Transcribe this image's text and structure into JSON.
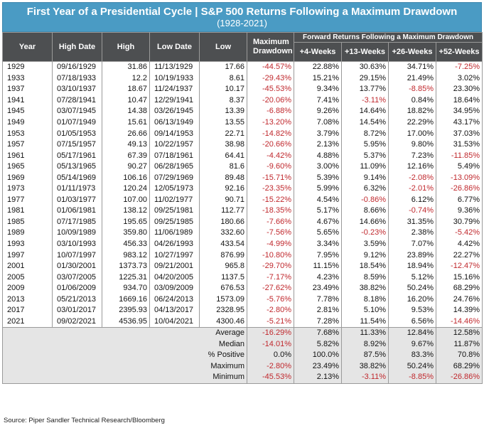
{
  "title": "First Year of a Presidential Cycle | S&P 500 Returns Following a Maximum Drawdown",
  "subtitle": "(1928-2021)",
  "super_header": "Forward Returns Following a Maximum Drawdown",
  "columns": [
    "Year",
    "High Date",
    "High",
    "Low Date",
    "Low",
    "Maximum Drawdown",
    "+4-Weeks",
    "+13-Weeks",
    "+26-Weeks",
    "+52-Weeks"
  ],
  "rows": [
    [
      "1929",
      "09/16/1929",
      "31.86",
      "11/13/1929",
      "17.66",
      "-44.57%",
      "22.88%",
      "30.63%",
      "34.71%",
      "-7.25%"
    ],
    [
      "1933",
      "07/18/1933",
      "12.2",
      "10/19/1933",
      "8.61",
      "-29.43%",
      "15.21%",
      "29.15%",
      "21.49%",
      "3.02%"
    ],
    [
      "1937",
      "03/10/1937",
      "18.67",
      "11/24/1937",
      "10.17",
      "-45.53%",
      "9.34%",
      "13.77%",
      "-8.85%",
      "23.30%"
    ],
    [
      "1941",
      "07/28/1941",
      "10.47",
      "12/29/1941",
      "8.37",
      "-20.06%",
      "7.41%",
      "-3.11%",
      "0.84%",
      "18.64%"
    ],
    [
      "1945",
      "03/07/1945",
      "14.38",
      "03/26/1945",
      "13.39",
      "-6.88%",
      "9.26%",
      "14.64%",
      "18.82%",
      "34.95%"
    ],
    [
      "1949",
      "01/07/1949",
      "15.61",
      "06/13/1949",
      "13.55",
      "-13.20%",
      "7.08%",
      "14.54%",
      "22.29%",
      "43.17%"
    ],
    [
      "1953",
      "01/05/1953",
      "26.66",
      "09/14/1953",
      "22.71",
      "-14.82%",
      "3.79%",
      "8.72%",
      "17.00%",
      "37.03%"
    ],
    [
      "1957",
      "07/15/1957",
      "49.13",
      "10/22/1957",
      "38.98",
      "-20.66%",
      "2.13%",
      "5.95%",
      "9.80%",
      "31.53%"
    ],
    [
      "1961",
      "05/17/1961",
      "67.39",
      "07/18/1961",
      "64.41",
      "-4.42%",
      "4.88%",
      "5.37%",
      "7.23%",
      "-11.85%"
    ],
    [
      "1965",
      "05/13/1965",
      "90.27",
      "06/28/1965",
      "81.6",
      "-9.60%",
      "3.00%",
      "11.09%",
      "12.16%",
      "5.49%"
    ],
    [
      "1969",
      "05/14/1969",
      "106.16",
      "07/29/1969",
      "89.48",
      "-15.71%",
      "5.39%",
      "9.14%",
      "-2.08%",
      "-13.09%"
    ],
    [
      "1973",
      "01/11/1973",
      "120.24",
      "12/05/1973",
      "92.16",
      "-23.35%",
      "5.99%",
      "6.32%",
      "-2.01%",
      "-26.86%"
    ],
    [
      "1977",
      "01/03/1977",
      "107.00",
      "11/02/1977",
      "90.71",
      "-15.22%",
      "4.54%",
      "-0.86%",
      "6.12%",
      "6.77%"
    ],
    [
      "1981",
      "01/06/1981",
      "138.12",
      "09/25/1981",
      "112.77",
      "-18.35%",
      "5.17%",
      "8.66%",
      "-0.74%",
      "9.36%"
    ],
    [
      "1985",
      "07/17/1985",
      "195.65",
      "09/25/1985",
      "180.66",
      "-7.66%",
      "4.67%",
      "14.66%",
      "31.35%",
      "30.79%"
    ],
    [
      "1989",
      "10/09/1989",
      "359.80",
      "11/06/1989",
      "332.60",
      "-7.56%",
      "5.65%",
      "-0.23%",
      "2.38%",
      "-5.42%"
    ],
    [
      "1993",
      "03/10/1993",
      "456.33",
      "04/26/1993",
      "433.54",
      "-4.99%",
      "3.34%",
      "3.59%",
      "7.07%",
      "4.42%"
    ],
    [
      "1997",
      "10/07/1997",
      "983.12",
      "10/27/1997",
      "876.99",
      "-10.80%",
      "7.95%",
      "9.12%",
      "23.89%",
      "22.27%"
    ],
    [
      "2001",
      "01/30/2001",
      "1373.73",
      "09/21/2001",
      "965.8",
      "-29.70%",
      "11.15%",
      "18.54%",
      "18.94%",
      "-12.47%"
    ],
    [
      "2005",
      "03/07/2005",
      "1225.31",
      "04/20/2005",
      "1137.5",
      "-7.17%",
      "4.23%",
      "8.59%",
      "5.12%",
      "15.16%"
    ],
    [
      "2009",
      "01/06/2009",
      "934.70",
      "03/09/2009",
      "676.53",
      "-27.62%",
      "23.49%",
      "38.82%",
      "50.24%",
      "68.29%"
    ],
    [
      "2013",
      "05/21/2013",
      "1669.16",
      "06/24/2013",
      "1573.09",
      "-5.76%",
      "7.78%",
      "8.18%",
      "16.20%",
      "24.76%"
    ],
    [
      "2017",
      "03/01/2017",
      "2395.93",
      "04/13/2017",
      "2328.95",
      "-2.80%",
      "2.81%",
      "5.10%",
      "9.53%",
      "14.39%"
    ],
    [
      "2021",
      "09/02/2021",
      "4536.95",
      "10/04/2021",
      "4300.46",
      "-5.21%",
      "7.28%",
      "11.54%",
      "6.56%",
      "-14.46%"
    ]
  ],
  "stats": [
    {
      "label": "Average",
      "values": [
        "-16.29%",
        "7.68%",
        "11.33%",
        "12.84%",
        "12.58%"
      ]
    },
    {
      "label": "Median",
      "values": [
        "-14.01%",
        "5.82%",
        "8.92%",
        "9.67%",
        "11.87%"
      ]
    },
    {
      "label": "% Positive",
      "values": [
        "0.0%",
        "100.0%",
        "87.5%",
        "83.3%",
        "70.8%"
      ]
    },
    {
      "label": "Maximum",
      "values": [
        "-2.80%",
        "23.49%",
        "38.82%",
        "50.24%",
        "68.29%"
      ]
    },
    {
      "label": "Minimum",
      "values": [
        "-45.53%",
        "2.13%",
        "-3.11%",
        "-8.85%",
        "-26.86%"
      ]
    }
  ],
  "source": "Source: Piper Sandler Technical Research/Bloomberg",
  "colors": {
    "title_bg": "#4a9bc4",
    "header_bg": "#4d4f51",
    "negative": "#c0282d",
    "stats_bg": "#e5e5e5"
  }
}
